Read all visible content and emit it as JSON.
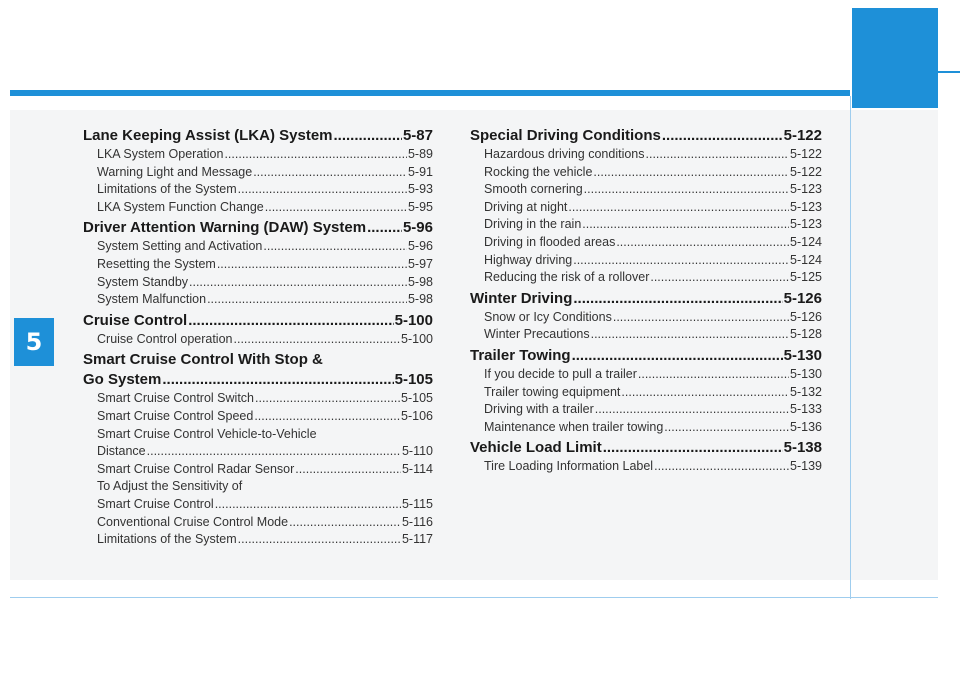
{
  "chapter": "5",
  "left_column": [
    {
      "title": "Lane Keeping Assist (LKA) System",
      "page": "5-87",
      "items": [
        {
          "title": "LKA System Operation",
          "page": "5-89"
        },
        {
          "title": "Warning Light and Message",
          "page": "5-91"
        },
        {
          "title": "Limitations of the System",
          "page": "5-93"
        },
        {
          "title": "LKA System Function Change",
          "page": "5-95"
        }
      ]
    },
    {
      "title": "Driver Attention Warning (DAW) System",
      "page": "5-96",
      "items": [
        {
          "title": "System Setting and Activation",
          "page": "5-96"
        },
        {
          "title": "Resetting the System",
          "page": "5-97"
        },
        {
          "title": "System Standby",
          "page": "5-98"
        },
        {
          "title": "System Malfunction",
          "page": "5-98"
        }
      ]
    },
    {
      "title": "Cruise Control",
      "page": "5-100",
      "items": [
        {
          "title": "Cruise Control operation",
          "page": "5-100"
        }
      ]
    },
    {
      "title_line1": "Smart Cruise Control With Stop &",
      "title": "Go System",
      "page": "5-105",
      "items": [
        {
          "title": "Smart Cruise Control Switch",
          "page": "5-105"
        },
        {
          "title": "Smart Cruise Control Speed",
          "page": "5-106"
        },
        {
          "title_line1": "Smart Cruise Control Vehicle-to-Vehicle",
          "title": "Distance",
          "page": "5-110"
        },
        {
          "title": "Smart Cruise Control Radar Sensor",
          "page": "5-114"
        },
        {
          "title_line1": "To Adjust the Sensitivity of",
          "title": "Smart Cruise Control",
          "page": "5-115"
        },
        {
          "title": "Conventional Cruise Control Mode",
          "page": "5-116"
        },
        {
          "title": "Limitations of the System",
          "page": "5-117"
        }
      ]
    }
  ],
  "right_column": [
    {
      "title": "Special Driving Conditions",
      "page": "5-122",
      "items": [
        {
          "title": "Hazardous driving conditions",
          "page": "5-122"
        },
        {
          "title": "Rocking the vehicle",
          "page": "5-122"
        },
        {
          "title": "Smooth cornering",
          "page": "5-123"
        },
        {
          "title": "Driving at night",
          "page": "5-123"
        },
        {
          "title": "Driving in the rain",
          "page": "5-123"
        },
        {
          "title": "Driving in flooded areas",
          "page": "5-124"
        },
        {
          "title": "Highway driving",
          "page": "5-124"
        },
        {
          "title": "Reducing the risk of a rollover",
          "page": "5-125"
        }
      ]
    },
    {
      "title": "Winter Driving",
      "page": "5-126",
      "items": [
        {
          "title": "Snow or Icy Conditions",
          "page": "5-126"
        },
        {
          "title": "Winter Precautions",
          "page": "5-128"
        }
      ]
    },
    {
      "title": "Trailer Towing",
      "page": "5-130",
      "items": [
        {
          "title": "If you decide to pull a trailer",
          "page": "5-130"
        },
        {
          "title": "Trailer towing equipment",
          "page": "5-132"
        },
        {
          "title": "Driving with a trailer",
          "page": "5-133"
        },
        {
          "title": "Maintenance when trailer towing",
          "page": "5-136"
        }
      ]
    },
    {
      "title": "Vehicle Load Limit",
      "page": "5-138",
      "items": [
        {
          "title": "Tire Loading Information Label",
          "page": "5-139"
        }
      ]
    }
  ],
  "colors": {
    "accent": "#1e90d8",
    "panel": "#f4f5f6"
  }
}
